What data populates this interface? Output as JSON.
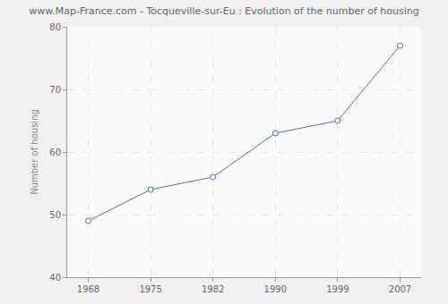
{
  "chart_data": {
    "type": "line",
    "title": "www.Map-France.com - Tocqueville-sur-Eu : Evolution of the number of housing",
    "y_label": "Number of housing",
    "categories": [
      "1968",
      "1975",
      "1982",
      "1990",
      "1999",
      "2007"
    ],
    "values": [
      49,
      54,
      56,
      63,
      65,
      77
    ],
    "color": "#4a76a8",
    "marker": "circle",
    "line_style": "solid",
    "ylim": [
      40,
      80
    ],
    "yticks": [
      40,
      50,
      60,
      70,
      80
    ],
    "grid": true
  }
}
